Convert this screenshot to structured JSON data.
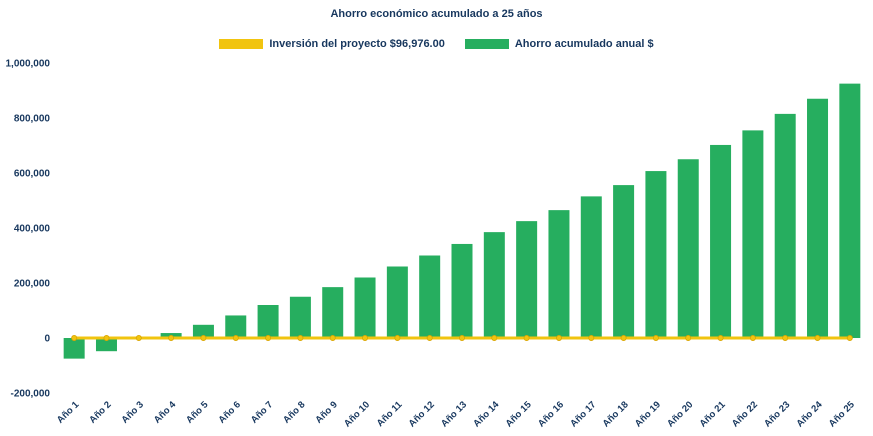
{
  "title": "Ahorro económico acumulado a 25 años",
  "colors": {
    "background": "#FFFFFF",
    "text": "#17375E",
    "bar_green": "#26AE5F",
    "line_gold": "#F1C40F"
  },
  "legend": [
    {
      "label": "Inversión del proyecto $96,976.00",
      "color": "#F1C40F"
    },
    {
      "label": "Ahorro acumulado anual $",
      "color": "#26AE5F"
    }
  ],
  "chart_data": {
    "type": "bar",
    "title": "Ahorro económico acumulado a 25 años",
    "categories": [
      "Año 1",
      "Año 2",
      "Año 3",
      "Año 4",
      "Año 5",
      "Año 6",
      "Año 7",
      "Año 8",
      "Año 9",
      "Año 10",
      "Año 11",
      "Año 12",
      "Año 13",
      "Año 14",
      "Año 15",
      "Año 16",
      "Año 17",
      "Año 18",
      "Año 19",
      "Año 20",
      "Año 21",
      "Año 22",
      "Año 23",
      "Año 24",
      "Año 25"
    ],
    "series": [
      {
        "name": "Ahorro acumulado anual $",
        "type": "bar",
        "color": "#26AE5F",
        "values": [
          -75000,
          -48000,
          5000,
          18000,
          48000,
          82000,
          120000,
          150000,
          185000,
          220000,
          260000,
          300000,
          342000,
          385000,
          425000,
          465000,
          515000,
          556000,
          607000,
          650000,
          702000,
          755000,
          815000,
          870000,
          925000
        ]
      },
      {
        "name": "Inversión del proyecto $96,976.00",
        "type": "line",
        "color": "#F1C40F",
        "values": [
          0,
          0,
          0,
          0,
          0,
          0,
          0,
          0,
          0,
          0,
          0,
          0,
          0,
          0,
          0,
          0,
          0,
          0,
          0,
          0,
          0,
          0,
          0,
          0,
          0
        ]
      }
    ],
    "ylim": [
      -200000,
      1000000
    ],
    "y_ticks": [
      -200000,
      0,
      200000,
      400000,
      600000,
      800000,
      1000000
    ],
    "grid": false,
    "legend_position": "top",
    "xlabel": "",
    "ylabel": ""
  }
}
